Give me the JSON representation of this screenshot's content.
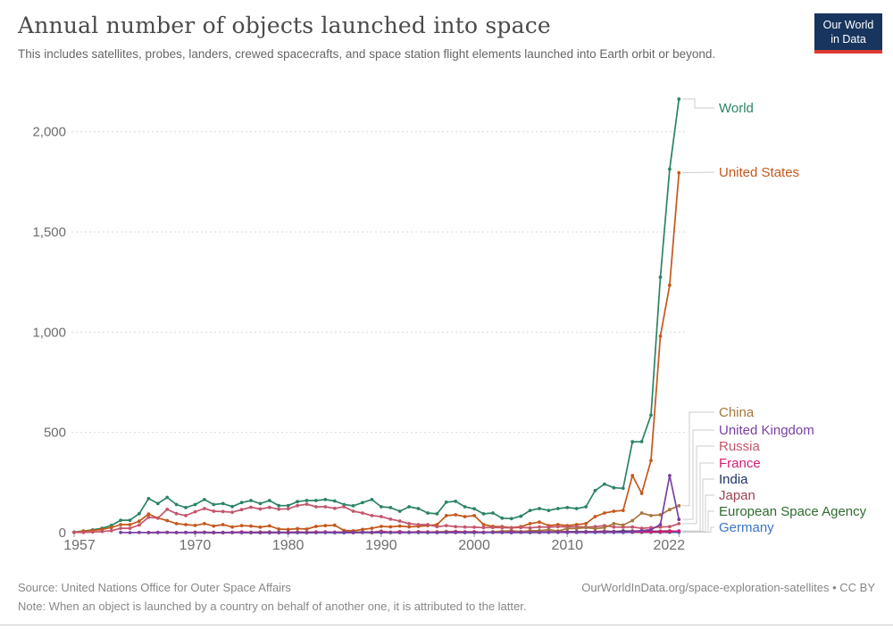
{
  "header": {
    "title": "Annual number of objects launched into space",
    "subtitle": "This includes satellites, probes, landers, crewed spacecrafts, and space station flight elements launched into Earth orbit or beyond."
  },
  "logo": {
    "line1": "Our World",
    "line2": "in Data",
    "bg_color": "#17355e",
    "accent_color": "#dc3a32"
  },
  "footer": {
    "source": "Source: United Nations Office for Outer Space Affairs",
    "link": "OurWorldInData.org/space-exploration-satellites • CC BY",
    "note": "Note: When an object is launched by a country on behalf of another one, it is attributed to the latter."
  },
  "chart_data": {
    "type": "line",
    "title": "Annual number of objects launched into space",
    "x_min": 1957,
    "x_max": 2022,
    "x_interval": "annual",
    "xticks": [
      1957,
      1970,
      1980,
      1990,
      2000,
      2010,
      2022
    ],
    "yticks": [
      0,
      500,
      1000,
      1500,
      2000
    ],
    "ylim": [
      0,
      2200
    ],
    "grid": true,
    "legend_position": "right-labels",
    "grid_color": "#d9d9d9",
    "axis_text_color": "#6e6e6e",
    "connector_color": "#cccccc",
    "draw_order": [
      "World",
      "United States",
      "Russia",
      "Japan",
      "European Space Agency",
      "Germany",
      "India",
      "China",
      "France",
      "United Kingdom"
    ],
    "series": [
      {
        "name": "World",
        "color": "#2C8465",
        "start_year": 1957,
        "label_y": 121,
        "elbow_x": 778,
        "values": [
          3,
          8,
          14,
          22,
          36,
          62,
          62,
          95,
          170,
          145,
          176,
          140,
          125,
          140,
          165,
          140,
          145,
          130,
          150,
          160,
          145,
          160,
          135,
          135,
          155,
          160,
          160,
          165,
          158,
          140,
          134,
          150,
          165,
          129,
          125,
          107,
          129,
          120,
          98,
          94,
          152,
          156,
          129,
          119,
          94,
          98,
          72,
          70,
          82,
          111,
          120,
          111,
          120,
          125,
          120,
          129,
          210,
          242,
          224,
          221,
          453,
          454,
          586,
          1274,
          1813,
          2163
        ]
      },
      {
        "name": "United States",
        "color": "#C4581C",
        "start_year": 1957,
        "label_y": 193,
        "elbow_x": 790,
        "values": [
          1,
          7,
          11,
          16,
          26,
          40,
          40,
          57,
          93,
          73,
          60,
          45,
          40,
          36,
          45,
          33,
          40,
          28,
          35,
          33,
          27,
          34,
          18,
          16,
          20,
          18,
          31,
          35,
          37,
          11,
          9,
          16,
          22,
          31,
          29,
          33,
          29,
          31,
          35,
          40,
          85,
          89,
          80,
          85,
          40,
          31,
          30,
          25,
          30,
          45,
          53,
          35,
          40,
          35,
          40,
          45,
          80,
          98,
          107,
          111,
          285,
          196,
          360,
          980,
          1234,
          1795
        ]
      },
      {
        "name": "China",
        "color": "#A5763B",
        "start_year": 1970,
        "label_y": 462,
        "elbow_x": 772,
        "values": [
          1,
          1,
          0,
          1,
          0,
          3,
          2,
          0,
          1,
          0,
          0,
          3,
          1,
          1,
          3,
          1,
          2,
          2,
          4,
          0,
          5,
          1,
          5,
          1,
          5,
          3,
          4,
          6,
          6,
          4,
          5,
          1,
          4,
          7,
          10,
          5,
          10,
          10,
          15,
          8,
          20,
          21,
          25,
          20,
          25,
          45,
          38,
          60,
          98,
          85,
          89,
          115,
          134
        ]
      },
      {
        "name": "United Kingdom",
        "color": "#7940A1",
        "start_year": 1962,
        "label_y": 482,
        "elbow_x": 776,
        "values": [
          1,
          0,
          1,
          0,
          0,
          1,
          0,
          1,
          0,
          1,
          0,
          0,
          1,
          0,
          0,
          0,
          0,
          1,
          0,
          1,
          0,
          0,
          1,
          1,
          1,
          0,
          2,
          1,
          2,
          1,
          0,
          2,
          1,
          1,
          1,
          2,
          1,
          2,
          1,
          1,
          1,
          2,
          0,
          2,
          1,
          1,
          2,
          2,
          1,
          3,
          2,
          3,
          2,
          3,
          2,
          5,
          10,
          15,
          40,
          285,
          66
        ]
      },
      {
        "name": "Russia",
        "color": "#C4566B",
        "start_year": 1957,
        "label_y": 500,
        "elbow_x": 780,
        "values": [
          2,
          1,
          3,
          6,
          10,
          22,
          22,
          38,
          77,
          72,
          116,
          95,
          85,
          104,
          120,
          107,
          105,
          102,
          115,
          127,
          118,
          126,
          117,
          119,
          135,
          142,
          129,
          129,
          121,
          129,
          107,
          98,
          85,
          80,
          67,
          58,
          45,
          40,
          40,
          30,
          35,
          30,
          28,
          27,
          25,
          26,
          25,
          24,
          26,
          24,
          28,
          27,
          30,
          28,
          30,
          28,
          30,
          35,
          28,
          27,
          28,
          22,
          25,
          28,
          30,
          45
        ]
      },
      {
        "name": "France",
        "color": "#D91A77",
        "start_year": 1965,
        "label_y": 519,
        "elbow_x": 784,
        "values": [
          1,
          2,
          2,
          1,
          1,
          2,
          2,
          1,
          1,
          2,
          3,
          1,
          1,
          1,
          1,
          1,
          2,
          1,
          2,
          3,
          2,
          2,
          1,
          2,
          2,
          4,
          2,
          3,
          2,
          3,
          3,
          2,
          2,
          4,
          3,
          3,
          2,
          2,
          1,
          3,
          2,
          2,
          2,
          3,
          3,
          2,
          3,
          2,
          4,
          3,
          3,
          3,
          3,
          4,
          4,
          3,
          6,
          8
        ]
      },
      {
        "name": "India",
        "color": "#1F3266",
        "start_year": 1975,
        "label_y": 537,
        "elbow_x": 787,
        "values": [
          1,
          0,
          0,
          0,
          1,
          1,
          2,
          1,
          2,
          1,
          1,
          0,
          1,
          2,
          0,
          1,
          1,
          2,
          2,
          2,
          1,
          1,
          2,
          1,
          1,
          1,
          2,
          2,
          2,
          2,
          2,
          2,
          3,
          4,
          3,
          4,
          4,
          3,
          4,
          4,
          4,
          8,
          5,
          6,
          7,
          4,
          5,
          7
        ]
      },
      {
        "name": "Japan",
        "color": "#9C4351",
        "start_year": 1970,
        "label_y": 555,
        "elbow_x": 790,
        "values": [
          1,
          2,
          1,
          0,
          1,
          2,
          2,
          3,
          3,
          2,
          2,
          3,
          2,
          3,
          3,
          2,
          3,
          3,
          2,
          2,
          7,
          2,
          4,
          2,
          2,
          2,
          3,
          2,
          2,
          2,
          1,
          1,
          4,
          3,
          1,
          4,
          9,
          4,
          3,
          5,
          4,
          5,
          5,
          5,
          7,
          6,
          7,
          8,
          9,
          6,
          7,
          9,
          5
        ]
      },
      {
        "name": "European Space Agency",
        "color": "#2F6B2F",
        "start_year": 1979,
        "label_y": 573,
        "elbow_x": 793,
        "values": [
          1,
          0,
          1,
          0,
          1,
          1,
          1,
          1,
          1,
          2,
          2,
          1,
          2,
          2,
          1,
          2,
          3,
          1,
          2,
          2,
          3,
          3,
          2,
          3,
          2,
          1,
          2,
          1,
          2,
          3,
          2,
          2,
          2,
          2,
          2,
          2,
          3,
          2,
          2,
          2,
          2,
          2,
          2,
          3
        ]
      },
      {
        "name": "Germany",
        "color": "#3B74C8",
        "start_year": 1969,
        "label_y": 591,
        "elbow_x": 796,
        "values": [
          1,
          1,
          1,
          1,
          0,
          1,
          1,
          1,
          0,
          1,
          0,
          0,
          0,
          0,
          1,
          1,
          0,
          1,
          0,
          1,
          1,
          1,
          1,
          1,
          2,
          1,
          1,
          1,
          1,
          1,
          1,
          2,
          1,
          1,
          1,
          1,
          2,
          1,
          2,
          1,
          2,
          2,
          1,
          2,
          1,
          2,
          1,
          1,
          2,
          4,
          3,
          2,
          3,
          2
        ]
      }
    ]
  }
}
